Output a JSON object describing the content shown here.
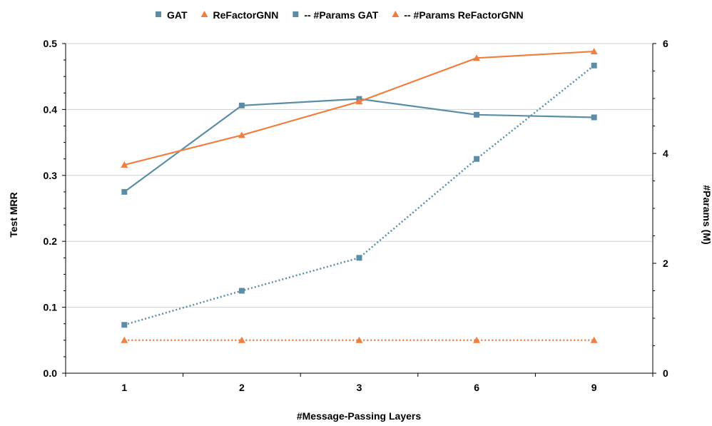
{
  "chart_data": {
    "type": "line",
    "categories": [
      "1",
      "2",
      "3",
      "6",
      "9"
    ],
    "xlabel": "#Message-Passing Layers",
    "ylabel": "Test MRR",
    "y2label": "#Params (M)",
    "ylim": [
      0,
      0.5
    ],
    "yticks": [
      "0.0",
      "0.1",
      "0.2",
      "0.3",
      "0.4",
      "0.5"
    ],
    "y2lim": [
      0,
      6
    ],
    "y2ticks": [
      "0",
      "2",
      "4",
      "6"
    ],
    "grid": true,
    "legend_position": "top",
    "series": [
      {
        "name": "GAT",
        "axis": "left",
        "values": [
          0.275,
          0.406,
          0.416,
          0.392,
          0.388
        ],
        "color": "#5b8ea6",
        "marker": "square",
        "dash": "solid"
      },
      {
        "name": "ReFactorGNN",
        "axis": "left",
        "values": [
          0.316,
          0.361,
          0.412,
          0.478,
          0.488
        ],
        "color": "#f07f3f",
        "marker": "triangle",
        "dash": "solid"
      },
      {
        "name": "-- #Params GAT",
        "axis": "right",
        "values": [
          0.88,
          1.5,
          2.1,
          3.9,
          5.6
        ],
        "color": "#5b8ea6",
        "marker": "square",
        "dash": "dotted"
      },
      {
        "name": "-- #Params ReFactorGNN",
        "axis": "right",
        "values": [
          0.6,
          0.6,
          0.6,
          0.6,
          0.6
        ],
        "color": "#f07f3f",
        "marker": "triangle",
        "dash": "dotted"
      }
    ]
  }
}
